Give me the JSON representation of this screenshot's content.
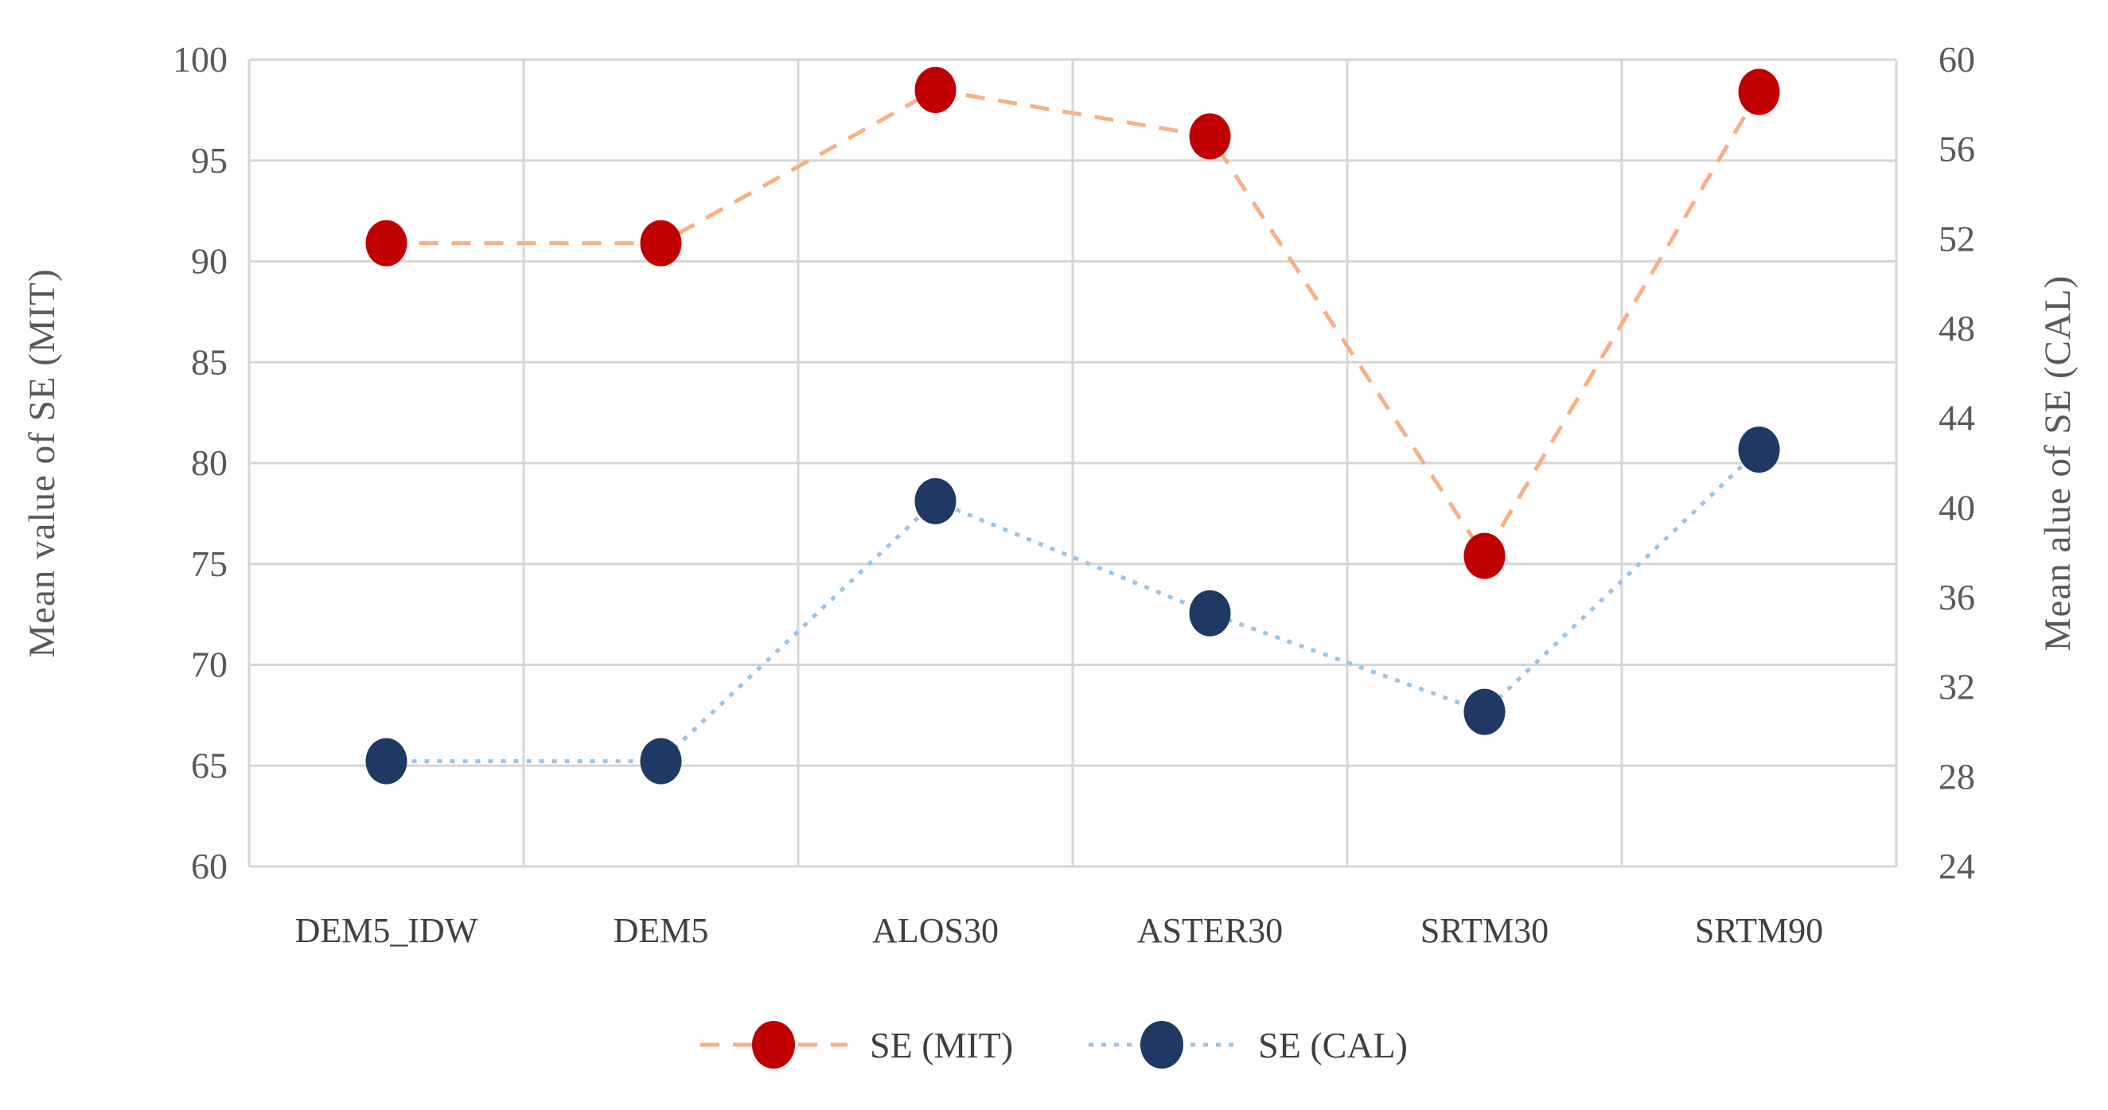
{
  "chart_data": {
    "type": "line",
    "title": "",
    "categories": [
      "DEM5_IDW",
      "DEM5",
      "ALOS30",
      "ASTER30",
      "SRTM30",
      "SRTM90"
    ],
    "series": [
      {
        "name": "SE (MIT)",
        "axis": "left",
        "values": [
          90.9,
          90.9,
          98.5,
          96.2,
          75.4,
          98.4
        ],
        "marker_color": "#c00000",
        "line_color": "#f5b183",
        "line_style": "dashed"
      },
      {
        "name": "SE (CAL)",
        "axis": "right",
        "values": [
          28.7,
          28.7,
          40.3,
          35.3,
          30.9,
          42.6
        ],
        "marker_color": "#1f3864",
        "line_color": "#9dc3e6",
        "line_style": "dotted"
      }
    ],
    "left_axis": {
      "label": "Mean value of SE (MIT)",
      "min": 60,
      "max": 100,
      "ticks": [
        100,
        95,
        90,
        85,
        80,
        75,
        70,
        65,
        60
      ]
    },
    "right_axis": {
      "label": "Mean alue of SE (CAL)",
      "min": 24,
      "max": 60,
      "ticks": [
        60,
        56,
        52,
        48,
        44,
        40,
        36,
        32,
        28,
        24
      ]
    },
    "grid": true,
    "gridline_color": "#d6d6d6",
    "legend_position": "bottom"
  },
  "legend": {
    "items": [
      {
        "label": "SE (MIT)"
      },
      {
        "label": "SE (CAL)"
      }
    ]
  }
}
